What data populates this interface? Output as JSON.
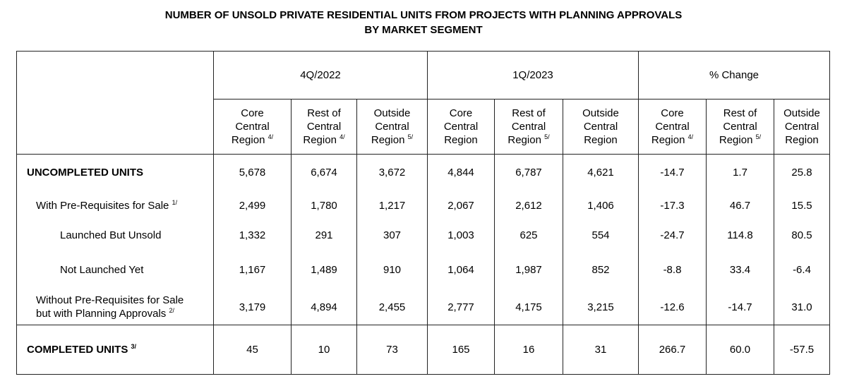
{
  "title": {
    "line1": "NUMBER OF UNSOLD PRIVATE RESIDENTIAL UNITS FROM PROJECTS WITH PLANNING APPROVALS",
    "line2": "BY MARKET SEGMENT"
  },
  "periods": [
    "4Q/2022",
    "1Q/2023",
    "% Change"
  ],
  "subheaders": [
    {
      "l1": "Core",
      "l2": "Central",
      "l3": "Region",
      "note": "4/"
    },
    {
      "l1": "Rest of",
      "l2": "Central",
      "l3": "Region",
      "note": "4/"
    },
    {
      "l1": "Outside",
      "l2": "Central",
      "l3": "Region",
      "note": "5/"
    },
    {
      "l1": "Core",
      "l2": "Central",
      "l3": "Region",
      "note": ""
    },
    {
      "l1": "Rest of",
      "l2": "Central",
      "l3": "Region",
      "note": "5/"
    },
    {
      "l1": "Outside",
      "l2": "Central",
      "l3": "Region",
      "note": ""
    },
    {
      "l1": "Core",
      "l2": "Central",
      "l3": "Region",
      "note": "4/"
    },
    {
      "l1": "Rest of",
      "l2": "Central",
      "l3": "Region",
      "note": "5/"
    },
    {
      "l1": "Outside",
      "l2": "Central",
      "l3": "Region",
      "note": ""
    }
  ],
  "rows": [
    {
      "label": "UNCOMPLETED UNITS",
      "label2": "",
      "note": "",
      "values": [
        "5,678",
        "6,674",
        "3,672",
        "4,844",
        "6,787",
        "4,621",
        "-14.7",
        "1.7",
        "25.8"
      ]
    },
    {
      "label": "With Pre-Requisites for Sale",
      "label2": "",
      "note": "1/",
      "values": [
        "2,499",
        "1,780",
        "1,217",
        "2,067",
        "2,612",
        "1,406",
        "-17.3",
        "46.7",
        "15.5"
      ]
    },
    {
      "label": "Launched But Unsold",
      "label2": "",
      "note": "",
      "values": [
        "1,332",
        "291",
        "307",
        "1,003",
        "625",
        "554",
        "-24.7",
        "114.8",
        "80.5"
      ]
    },
    {
      "label": "Not Launched Yet",
      "label2": "",
      "note": "",
      "values": [
        "1,167",
        "1,489",
        "910",
        "1,064",
        "1,987",
        "852",
        "-8.8",
        "33.4",
        "-6.4"
      ]
    },
    {
      "label": "Without Pre-Requisites for Sale",
      "label2": "but with Planning Approvals",
      "note": "2/",
      "values": [
        "3,179",
        "4,894",
        "2,455",
        "2,777",
        "4,175",
        "3,215",
        "-12.6",
        "-14.7",
        "31.0"
      ]
    },
    {
      "label": "COMPLETED UNITS",
      "label2": "",
      "note": "3/",
      "values": [
        "45",
        "10",
        "73",
        "165",
        "16",
        "31",
        "266.7",
        "60.0",
        "-57.5"
      ]
    }
  ]
}
